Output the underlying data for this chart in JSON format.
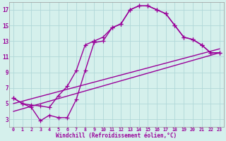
{
  "xlabel": "Windchill (Refroidissement éolien,°C)",
  "bg_color": "#d5f0ec",
  "line_color": "#990099",
  "linewidth": 1.0,
  "markersize": 4,
  "xlim": [
    -0.5,
    23.5
  ],
  "ylim": [
    2.0,
    18.0
  ],
  "xticks": [
    0,
    1,
    2,
    3,
    4,
    5,
    6,
    7,
    8,
    9,
    10,
    11,
    12,
    13,
    14,
    15,
    16,
    17,
    18,
    19,
    20,
    21,
    22,
    23
  ],
  "yticks": [
    3,
    5,
    7,
    9,
    11,
    13,
    15,
    17
  ],
  "grid_color": "#b0d8d8",
  "curve_up_x": [
    0,
    1,
    2,
    3,
    4,
    5,
    6,
    7,
    8,
    9,
    10,
    11,
    12,
    13,
    14,
    15,
    16,
    17,
    18,
    19,
    20,
    21,
    22,
    23
  ],
  "curve_up_y": [
    5.7,
    5.0,
    4.5,
    2.8,
    3.5,
    3.2,
    3.2,
    5.5,
    9.2,
    12.8,
    13.0,
    14.7,
    15.2,
    17.0,
    17.5,
    17.5,
    17.0,
    16.5,
    15.0,
    13.5,
    13.2,
    12.5,
    11.5,
    11.5
  ],
  "curve_down_x": [
    0,
    1,
    2,
    3,
    4,
    5,
    6,
    7,
    8,
    9,
    10,
    11,
    12,
    13,
    14,
    15,
    16,
    17,
    18,
    19,
    20,
    21,
    22,
    23
  ],
  "curve_down_y": [
    5.7,
    5.0,
    4.8,
    4.7,
    4.5,
    6.0,
    7.2,
    9.2,
    12.5,
    13.0,
    13.5,
    14.7,
    15.2,
    17.0,
    17.5,
    17.5,
    17.0,
    16.5,
    15.0,
    13.5,
    13.2,
    12.5,
    11.5,
    11.5
  ],
  "line1_x": [
    0,
    23
  ],
  "line1_y": [
    5.0,
    12.0
  ],
  "line2_x": [
    0,
    23
  ],
  "line2_y": [
    4.0,
    11.5
  ]
}
